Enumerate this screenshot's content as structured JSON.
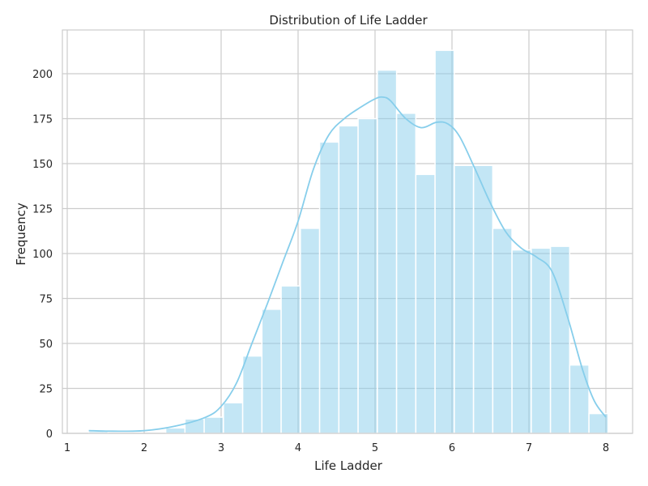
{
  "chart_data": {
    "type": "bar",
    "title": "Distribution of Life Ladder",
    "xlabel": "Life Ladder",
    "ylabel": "Frequency",
    "xlim": [
      1.0,
      8.0
    ],
    "ylim": [
      0,
      225
    ],
    "xticks": [
      1,
      2,
      3,
      4,
      5,
      6,
      7,
      8
    ],
    "yticks": [
      0,
      25,
      50,
      75,
      100,
      125,
      150,
      175,
      200
    ],
    "grid": true,
    "bar_color": "#87CEEB",
    "bar_alpha": 0.5,
    "line_color": "#87CEEB",
    "bins": [
      {
        "x0": 1.28,
        "x1": 1.53,
        "count": 1
      },
      {
        "x0": 1.53,
        "x1": 1.78,
        "count": 0
      },
      {
        "x0": 1.78,
        "x1": 2.03,
        "count": 0
      },
      {
        "x0": 2.03,
        "x1": 2.28,
        "count": 0
      },
      {
        "x0": 2.28,
        "x1": 2.53,
        "count": 3
      },
      {
        "x0": 2.53,
        "x1": 2.78,
        "count": 8
      },
      {
        "x0": 2.78,
        "x1": 3.03,
        "count": 9
      },
      {
        "x0": 3.03,
        "x1": 3.28,
        "count": 17
      },
      {
        "x0": 3.28,
        "x1": 3.53,
        "count": 43
      },
      {
        "x0": 3.53,
        "x1": 3.78,
        "count": 69
      },
      {
        "x0": 3.78,
        "x1": 4.03,
        "count": 82
      },
      {
        "x0": 4.03,
        "x1": 4.28,
        "count": 114
      },
      {
        "x0": 4.28,
        "x1": 4.53,
        "count": 162
      },
      {
        "x0": 4.53,
        "x1": 4.78,
        "count": 171
      },
      {
        "x0": 4.78,
        "x1": 5.03,
        "count": 175
      },
      {
        "x0": 5.03,
        "x1": 5.28,
        "count": 202
      },
      {
        "x0": 5.28,
        "x1": 5.53,
        "count": 178
      },
      {
        "x0": 5.53,
        "x1": 5.78,
        "count": 144
      },
      {
        "x0": 5.78,
        "x1": 6.03,
        "count": 213
      },
      {
        "x0": 6.03,
        "x1": 6.28,
        "count": 149
      },
      {
        "x0": 6.28,
        "x1": 6.53,
        "count": 149
      },
      {
        "x0": 6.53,
        "x1": 6.78,
        "count": 114
      },
      {
        "x0": 6.78,
        "x1": 7.03,
        "count": 102
      },
      {
        "x0": 7.03,
        "x1": 7.28,
        "count": 103
      },
      {
        "x0": 7.28,
        "x1": 7.53,
        "count": 104
      },
      {
        "x0": 7.53,
        "x1": 7.78,
        "count": 38
      },
      {
        "x0": 7.78,
        "x1": 8.03,
        "count": 11
      }
    ],
    "kde": {
      "x": [
        1.28,
        1.6,
        2.0,
        2.4,
        2.8,
        3.0,
        3.2,
        3.4,
        3.6,
        3.8,
        4.0,
        4.2,
        4.4,
        4.6,
        4.8,
        5.0,
        5.1,
        5.2,
        5.4,
        5.6,
        5.8,
        5.95,
        6.1,
        6.3,
        6.5,
        6.7,
        6.9,
        7.1,
        7.3,
        7.5,
        7.7,
        7.85,
        8.0
      ],
      "y": [
        1.5,
        1.2,
        1.5,
        4,
        9,
        15,
        28,
        50,
        72,
        95,
        118,
        147,
        166,
        175,
        181,
        186,
        187,
        185,
        175,
        170,
        173,
        172,
        165,
        147,
        128,
        112,
        103,
        98,
        90,
        65,
        35,
        18,
        9
      ]
    }
  }
}
